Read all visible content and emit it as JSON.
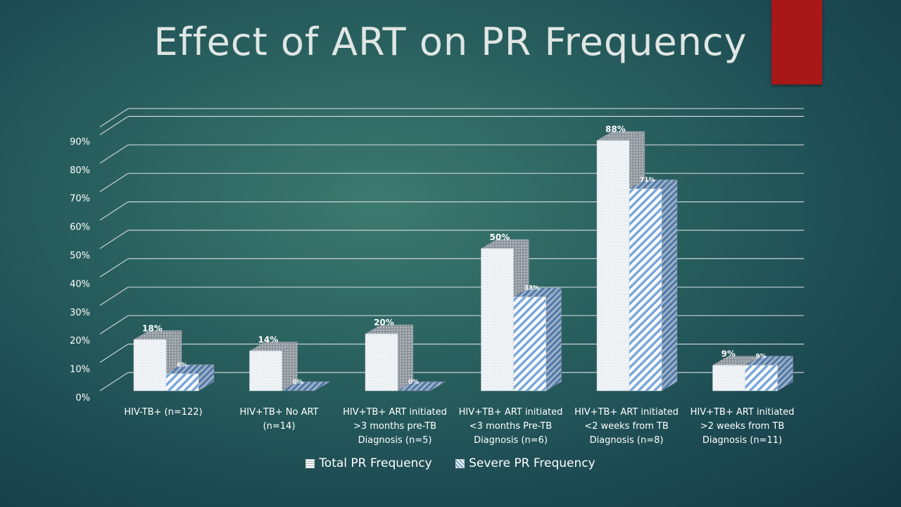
{
  "slide": {
    "title": "Effect of ART on PR Frequency"
  },
  "colors": {
    "accent_tab": "#a81818",
    "total_bar": "#f2f6fa",
    "severe_bar": "#6f9fd6",
    "text": "#ffffff"
  },
  "chart_data": {
    "type": "bar",
    "title": "",
    "categories": [
      [
        "HIV-TB+ (n=122)"
      ],
      [
        "HIV+TB+ No ART",
        "(n=14)"
      ],
      [
        "HIV+TB+ ART initiated",
        ">3 months pre-TB",
        "Diagnosis (n=5)"
      ],
      [
        "HIV+TB+ ART initiated",
        "<3 months Pre-TB",
        "Diagnosis (n=6)"
      ],
      [
        "HIV+TB+ ART initiated",
        "<2 weeks from TB",
        "Diagnosis (n=8)"
      ],
      [
        "HIV+TB+ ART initiated",
        ">2 weeks from TB",
        "Diagnosis (n=11)"
      ]
    ],
    "series": [
      {
        "name": "Total PR Frequency",
        "values": [
          18,
          14,
          20,
          50,
          88,
          9
        ],
        "labels": [
          "18%",
          "14%",
          "20%",
          "50%",
          "88%",
          "9%"
        ]
      },
      {
        "name": "Severe PR Frequency",
        "values": [
          6,
          0,
          0,
          33,
          71,
          9
        ],
        "labels": [
          "6%",
          "0%",
          "0%",
          "33%",
          "71%",
          "9%"
        ]
      }
    ],
    "yticks": [
      "0%",
      "10%",
      "20%",
      "30%",
      "40%",
      "50%",
      "60%",
      "70%",
      "80%",
      "90%"
    ],
    "ylim": [
      0,
      90
    ],
    "grid": true,
    "legend_position": "bottom",
    "three_d": true
  }
}
